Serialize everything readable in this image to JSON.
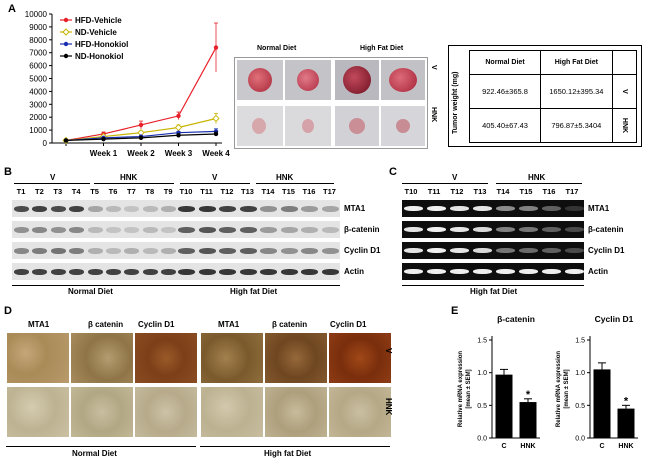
{
  "panels": {
    "A": "A",
    "B": "B",
    "C": "C",
    "D": "D",
    "E": "E"
  },
  "chart_data": [
    {
      "type": "line",
      "categories": [
        "",
        "Week 1",
        "Week 2",
        "Week 3",
        "Week 4"
      ],
      "ylim": [
        0,
        10000
      ],
      "yticks": [
        "0",
        "1000",
        "2000",
        "3000",
        "4000",
        "5000",
        "6000",
        "7000",
        "8000",
        "9000",
        "10000"
      ],
      "legend_position": "top-left",
      "series": [
        {
          "name": "HFD-Vehicle",
          "color": "#e8202a",
          "values": [
            200,
            700,
            1400,
            2100,
            7400
          ],
          "errors": [
            50,
            150,
            300,
            300,
            1900
          ]
        },
        {
          "name": "ND-Vehicle",
          "color": "#c8b400",
          "values": [
            200,
            500,
            800,
            1200,
            1900
          ],
          "errors": [
            40,
            80,
            120,
            200,
            400
          ]
        },
        {
          "name": "HFD-Honokiol",
          "color": "#1a2fb0",
          "values": [
            200,
            400,
            500,
            800,
            900
          ],
          "errors": [
            30,
            60,
            80,
            100,
            200
          ]
        },
        {
          "name": "ND-Honokiol",
          "color": "#000000",
          "values": [
            200,
            300,
            400,
            600,
            700
          ],
          "errors": [
            30,
            50,
            60,
            90,
            150
          ]
        }
      ]
    },
    {
      "type": "bar",
      "title": "β-catenin",
      "ylabel": "Relative mRNA expression [mean ± SEM]",
      "categories": [
        "C",
        "HNK"
      ],
      "values": [
        0.97,
        0.55
      ],
      "errors": [
        0.08,
        0.05
      ],
      "ylim": [
        0,
        1.5
      ],
      "yticks": [
        "0.0",
        "0.5",
        "1.0",
        "1.5"
      ],
      "significance": "*"
    },
    {
      "type": "bar",
      "title": "Cyclin D1",
      "ylabel": "Relative mRNA expression [mean ± SEM]",
      "categories": [
        "C",
        "HNK"
      ],
      "values": [
        1.05,
        0.45
      ],
      "errors": [
        0.1,
        0.05
      ],
      "ylim": [
        0,
        1.5
      ],
      "yticks": [
        "0.0",
        "0.5",
        "1.0",
        "1.5"
      ],
      "significance": "*"
    }
  ],
  "tumor_photos": {
    "normal": "Normal Diet",
    "high": "High Fat Diet",
    "row_v": "V",
    "row_hnk": "HNK"
  },
  "tumor_table": {
    "ylabel": "Tumor weight (mg)",
    "header": [
      "Normal Diet",
      "High Fat Diet"
    ],
    "rows": [
      {
        "label": "V",
        "values": [
          "922.46±365.8",
          "1650.12±395.34"
        ]
      },
      {
        "label": "HNK",
        "values": [
          "405.40±67.43",
          "796.87±5.3404"
        ]
      }
    ]
  },
  "blotB": {
    "left": {
      "groups": [
        "V",
        "HNK"
      ],
      "lanes": [
        "T1",
        "T2",
        "T3",
        "T4",
        "T5",
        "T6",
        "T7",
        "T8",
        "T9"
      ],
      "diet": "Normal Diet"
    },
    "right": {
      "groups": [
        "V",
        "HNK"
      ],
      "lanes": [
        "T10",
        "T11",
        "T12",
        "T13",
        "T14",
        "T15",
        "T16",
        "T17"
      ],
      "diet": "High fat Diet"
    },
    "proteins": [
      "MTA1",
      "β-catenin",
      "Cyclin D1",
      "Actin"
    ]
  },
  "gelC": {
    "groups": [
      "V",
      "HNK"
    ],
    "lanes": [
      "T10",
      "T11",
      "T12",
      "T13",
      "T14",
      "T15",
      "T16",
      "T17"
    ],
    "genes": [
      "MTA1",
      "β-catenin",
      "Cyclin D1",
      "Actin"
    ],
    "diet": "High fat Diet"
  },
  "ihcD": {
    "left_headers": [
      "MTA1",
      "β catenin",
      "Cyclin D1"
    ],
    "right_headers": [
      "MTA1",
      "β catenin",
      "Cyclin D1"
    ],
    "rows": [
      "V",
      "HNK"
    ],
    "left_diet": "Normal Diet",
    "right_diet": "High fat Diet"
  }
}
